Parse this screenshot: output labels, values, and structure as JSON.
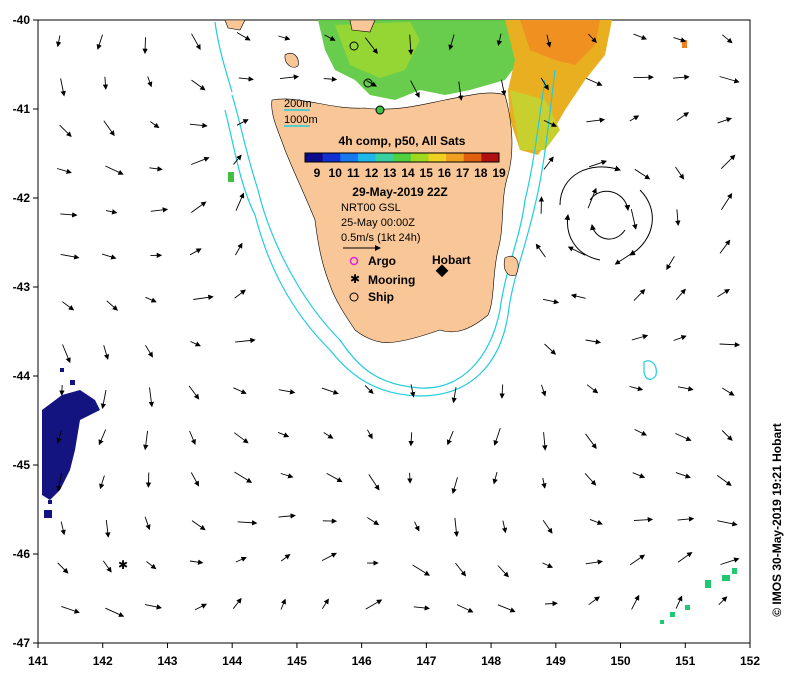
{
  "map": {
    "region": "Tasmania",
    "lon_ticks": [
      "141",
      "142",
      "143",
      "144",
      "145",
      "146",
      "147",
      "148",
      "149",
      "150",
      "151",
      "152"
    ],
    "lat_ticks": [
      "-40",
      "-41",
      "-42",
      "-43",
      "-44",
      "-45",
      "-46",
      "-47"
    ],
    "lon_range": [
      141,
      152
    ],
    "lat_range": [
      -47,
      -40
    ],
    "land_color": "#f9c797",
    "isobath_color": "#22ccdd",
    "arrow_color": "#000000"
  },
  "isobaths": {
    "label_200": "200m",
    "label_1000": "1000m"
  },
  "sst_legend": {
    "title": "4h comp, p50, All Sats",
    "ticks": [
      "9",
      "10",
      "11",
      "12",
      "13",
      "14",
      "15",
      "16",
      "17",
      "18",
      "19"
    ],
    "date": "29-May-2019 22Z",
    "colors": [
      "#0b0b8a",
      "#1030d0",
      "#1878f0",
      "#20b8e8",
      "#38d0a0",
      "#50d040",
      "#a0d820",
      "#f0d020",
      "#f0a020",
      "#e06010",
      "#b01010"
    ]
  },
  "currents": {
    "product": "NRT00 GSL",
    "time": "25-May 00:00Z",
    "scale": "0.5m/s (1kt 24h)"
  },
  "markers": {
    "argo": "Argo",
    "mooring": "Mooring",
    "ship": "Ship",
    "city": "Hobart"
  },
  "credit": "© IMOS 30-May-2019 19:21 Hobart"
}
